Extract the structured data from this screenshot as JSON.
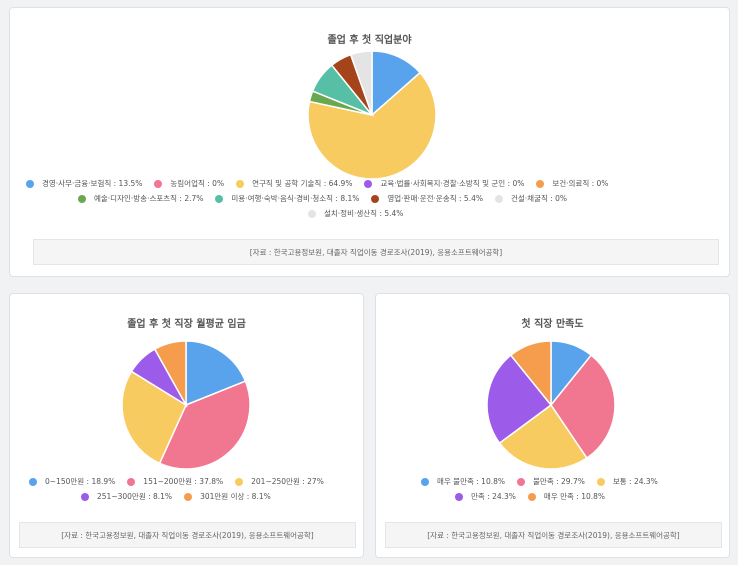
{
  "source_text": "[자료 : 한국고용정보원, 대졸자 직업이동 경로조사(2019), 응용소프트웨어공학]",
  "chart_data": [
    {
      "type": "pie",
      "title": "졸업 후 첫 직업분야",
      "slices": [
        {
          "label": "경영·사무·금융·보험직 : 13.5%",
          "value": 13.5,
          "color": "#58a3ec"
        },
        {
          "label": "농림어업직 : 0%",
          "value": 0,
          "color": "#f1768f"
        },
        {
          "label": "연구직 및 공학 기술직 : 64.9%",
          "value": 64.9,
          "color": "#f8cb61"
        },
        {
          "label": "교육·법률·사회복지·경찰·소방직 및 군인 : 0%",
          "value": 0,
          "color": "#9c5be9"
        },
        {
          "label": "보건·의료직 : 0%",
          "value": 0,
          "color": "#f59c4d"
        },
        {
          "label": "예술·디자인·방송·스포츠직 : 2.7%",
          "value": 2.7,
          "color": "#6aa84f"
        },
        {
          "label": "미용·여행·숙박·음식·경비·청소직 : 8.1%",
          "value": 8.1,
          "color": "#56bfa5"
        },
        {
          "label": "영업·판매·운전·운송직 : 5.4%",
          "value": 5.4,
          "color": "#a5431b"
        },
        {
          "label": "건설·채굴직 : 0%",
          "value": 0,
          "color": "#e4e4e4"
        },
        {
          "label": "설치·정비·생산직 : 5.4%",
          "value": 5.4,
          "color": "#e4e4e4"
        }
      ]
    },
    {
      "type": "pie",
      "title": "졸업 후 첫 직장 월평균 임금",
      "slices": [
        {
          "label": "0~150만원 : 18.9%",
          "value": 18.9,
          "color": "#58a3ec"
        },
        {
          "label": "151~200만원 : 37.8%",
          "value": 37.8,
          "color": "#f1768f"
        },
        {
          "label": "201~250만원 : 27%",
          "value": 27,
          "color": "#f8cb61"
        },
        {
          "label": "251~300만원 : 8.1%",
          "value": 8.1,
          "color": "#9c5be9"
        },
        {
          "label": "301만원 이상 : 8.1%",
          "value": 8.1,
          "color": "#f59c4d"
        }
      ]
    },
    {
      "type": "pie",
      "title": "첫 직장 만족도",
      "slices": [
        {
          "label": "매우 불만족 : 10.8%",
          "value": 10.8,
          "color": "#58a3ec"
        },
        {
          "label": "불만족 : 29.7%",
          "value": 29.7,
          "color": "#f1768f"
        },
        {
          "label": "보통 : 24.3%",
          "value": 24.3,
          "color": "#f8cb61"
        },
        {
          "label": "만족 : 24.3%",
          "value": 24.3,
          "color": "#9c5be9"
        },
        {
          "label": "매우 만족 : 10.8%",
          "value": 10.8,
          "color": "#f59c4d"
        }
      ]
    }
  ]
}
